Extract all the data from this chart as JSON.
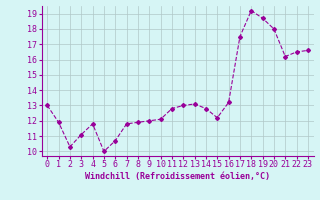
{
  "x": [
    0,
    1,
    2,
    3,
    4,
    5,
    6,
    7,
    8,
    9,
    10,
    11,
    12,
    13,
    14,
    15,
    16,
    17,
    18,
    19,
    20,
    21,
    22,
    23
  ],
  "y": [
    13.0,
    11.9,
    10.3,
    11.1,
    11.8,
    10.0,
    10.7,
    11.8,
    11.9,
    12.0,
    12.1,
    12.8,
    13.0,
    13.1,
    12.8,
    12.2,
    13.2,
    17.5,
    19.2,
    18.7,
    18.0,
    16.2,
    16.5,
    16.6
  ],
  "line_color": "#990099",
  "marker": "D",
  "marker_size": 2,
  "bg_color": "#d6f5f5",
  "grid_color": "#b0c8c8",
  "xlabel": "Windchill (Refroidissement éolien,°C)",
  "xlabel_fontsize": 6,
  "ylabel_ticks": [
    10,
    11,
    12,
    13,
    14,
    15,
    16,
    17,
    18,
    19
  ],
  "xlim": [
    -0.5,
    23.5
  ],
  "ylim": [
    9.7,
    19.5
  ],
  "tick_fontsize": 6,
  "linewidth": 0.8
}
